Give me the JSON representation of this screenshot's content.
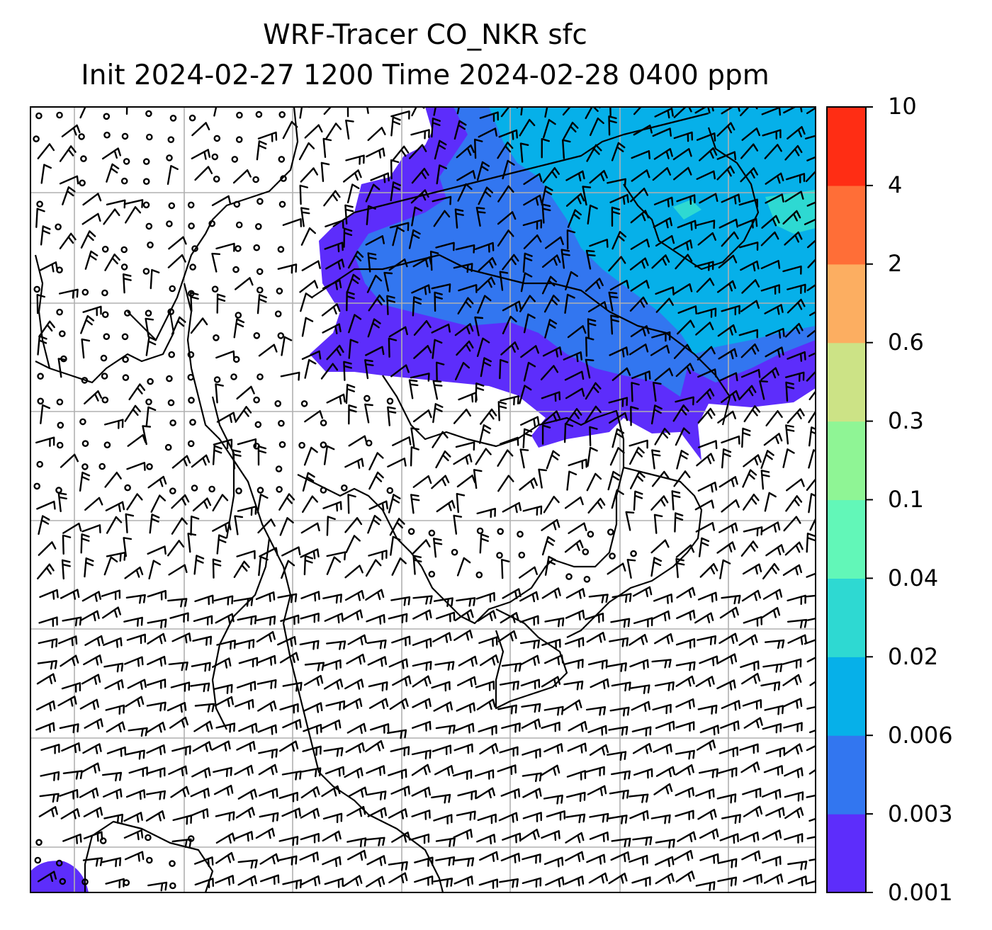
{
  "title": {
    "line1": "WRF-Tracer CO_NKR sfc",
    "line2": "Init 2024-02-27 1200 Time 2024-02-28 0400 ppm"
  },
  "colorbar": {
    "levels": [
      "0.001",
      "0.003",
      "0.006",
      "0.02",
      "0.04",
      "0.1",
      "0.3",
      "0.6",
      "2",
      "4",
      "10"
    ],
    "colors": [
      "#5d2dfb",
      "#3276f0",
      "#06b0e9",
      "#2ed9d2",
      "#62f7b8",
      "#8ff595",
      "#cce386",
      "#fcae61",
      "#ff6e37",
      "#ff2d14"
    ]
  },
  "map": {
    "grid": "on",
    "wind_barbs": "on",
    "coastlines": "on"
  }
}
